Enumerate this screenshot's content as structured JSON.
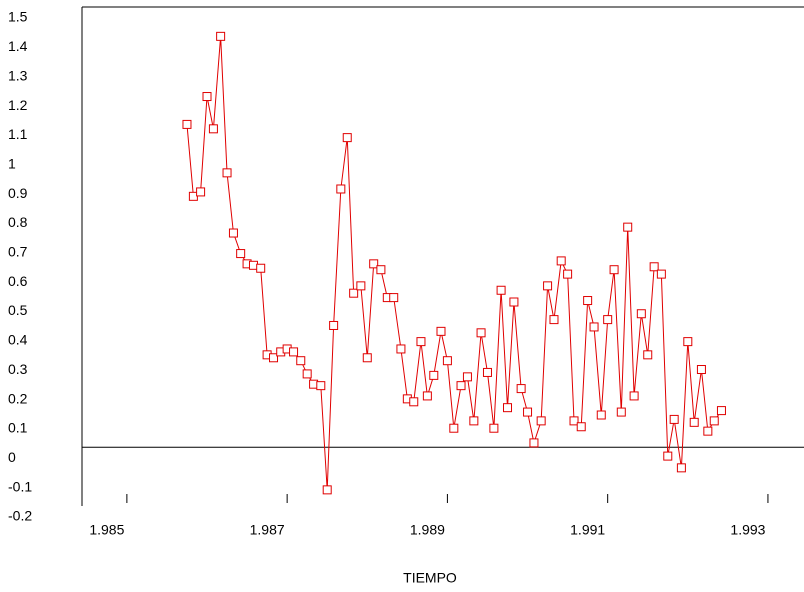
{
  "chart_data": {
    "type": "line",
    "x_label": "TIEMPO",
    "x": [
      1.98575,
      1.98583,
      1.98592,
      1.986,
      1.98608,
      1.98617,
      1.98625,
      1.98633,
      1.98642,
      1.9865,
      1.98658,
      1.98667,
      1.98675,
      1.98683,
      1.98692,
      1.987,
      1.98708,
      1.98717,
      1.98725,
      1.98733,
      1.98742,
      1.9875,
      1.98758,
      1.98767,
      1.98775,
      1.98783,
      1.98792,
      1.988,
      1.98808,
      1.98817,
      1.98825,
      1.98833,
      1.98842,
      1.9885,
      1.98858,
      1.98867,
      1.98875,
      1.98883,
      1.98892,
      1.989,
      1.98908,
      1.98917,
      1.98925,
      1.98933,
      1.98942,
      1.9895,
      1.98958,
      1.98967,
      1.98975,
      1.98983,
      1.98992,
      1.99,
      1.99008,
      1.99017,
      1.99025,
      1.99033,
      1.99042,
      1.9905,
      1.99058,
      1.99067,
      1.99075,
      1.99083,
      1.99092,
      1.991,
      1.99108,
      1.99117,
      1.99125,
      1.99133,
      1.99142,
      1.9915,
      1.99158,
      1.99167,
      1.99175,
      1.99183,
      1.99192,
      1.992,
      1.99208,
      1.99217,
      1.99225,
      1.99233,
      1.99242
    ],
    "series": [
      {
        "color": "#e00000",
        "marker": "square",
        "values": [
          1.1,
          0.855,
          0.87,
          1.195,
          1.085,
          1.4,
          0.935,
          0.73,
          0.66,
          0.625,
          0.62,
          0.61,
          0.315,
          0.305,
          0.325,
          0.335,
          0.325,
          0.295,
          0.25,
          0.215,
          0.21,
          -0.145,
          0.415,
          0.88,
          1.055,
          0.525,
          0.55,
          0.305,
          0.625,
          0.605,
          0.51,
          0.51,
          0.335,
          0.165,
          0.155,
          0.36,
          0.175,
          0.245,
          0.395,
          0.295,
          0.065,
          0.21,
          0.24,
          0.09,
          0.39,
          0.255,
          0.065,
          0.535,
          0.135,
          0.495,
          0.2,
          0.12,
          0.015,
          0.09,
          0.55,
          0.435,
          0.635,
          0.59,
          0.09,
          0.07,
          0.5,
          0.41,
          0.11,
          0.435,
          0.605,
          0.12,
          0.75,
          0.175,
          0.455,
          0.315,
          0.615,
          0.59,
          -0.03,
          0.095,
          -0.07,
          0.36,
          0.085,
          0.265,
          0.055,
          0.09,
          0.125
        ]
      }
    ],
    "xlim": [
      1.98444,
      1.99345
    ],
    "ylim": [
      -0.2,
      1.5
    ],
    "xticks": [
      1.985,
      1.987,
      1.989,
      1.991,
      1.993
    ],
    "yticks": [
      -0.2,
      -0.1,
      0,
      0.1,
      0.2,
      0.3,
      0.4,
      0.5,
      0.6,
      0.7,
      0.8,
      0.9,
      1,
      1.1,
      1.2,
      1.3,
      1.4,
      1.5
    ],
    "zero_line": true
  }
}
